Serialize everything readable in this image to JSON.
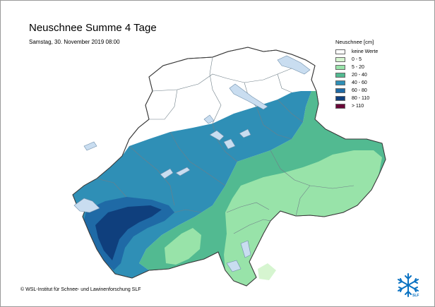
{
  "title": "Neuschnee Summe 4 Tage",
  "subtitle": "Samstag, 30. November 2019 08:00",
  "copyright": "© WSL-Institut für Schnee- und Lawinenforschung SLF",
  "legend": {
    "title": "Neuschnee [cm]",
    "items": [
      {
        "label": "keine Werte",
        "color": "#ffffff"
      },
      {
        "label": "0 - 5",
        "color": "#d6f5d0"
      },
      {
        "label": "5 - 20",
        "color": "#98e3a9"
      },
      {
        "label": "20 - 40",
        "color": "#52ba91"
      },
      {
        "label": "40 - 60",
        "color": "#2f8fb6"
      },
      {
        "label": "60 - 80",
        "color": "#1f6aa6"
      },
      {
        "label": "80 - 110",
        "color": "#0f3f7d"
      },
      {
        "label": "> 110",
        "color": "#6a0738"
      }
    ]
  },
  "logo": {
    "text": "SLF",
    "icon": "snowflake-icon"
  }
}
